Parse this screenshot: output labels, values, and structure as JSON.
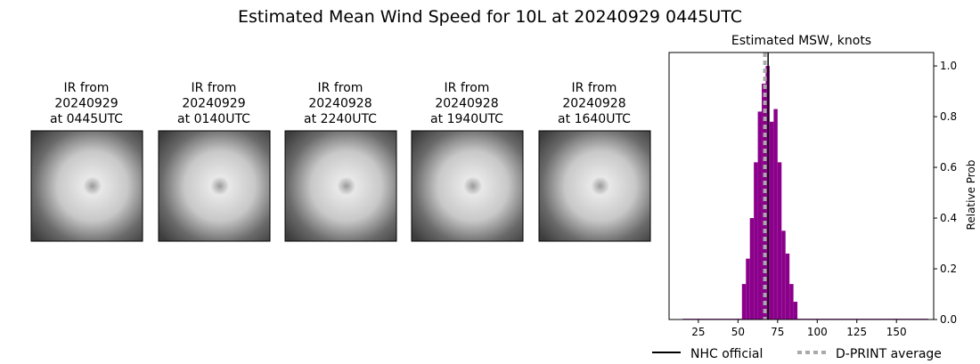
{
  "title": "Estimated Mean Wind Speed for 10L at 20240929 0445UTC",
  "panels": [
    {
      "lines": [
        "IR from",
        "20240929",
        "at 0445UTC"
      ]
    },
    {
      "lines": [
        "IR from",
        "20240929",
        "at 0140UTC"
      ]
    },
    {
      "lines": [
        "IR from",
        "20240928",
        "at 2240UTC"
      ]
    },
    {
      "lines": [
        "IR from",
        "20240928",
        "at 1940UTC"
      ]
    },
    {
      "lines": [
        "IR from",
        "20240928",
        "at 1640UTC"
      ]
    }
  ],
  "chart_data": {
    "type": "histogram",
    "title": "Estimated MSW, knots",
    "ylabel": "Relative Prob",
    "color": "#8b008b",
    "bins": [
      15,
      52.5,
      55,
      57.5,
      60,
      62.5,
      65,
      67.5,
      70,
      72.5,
      75,
      77.5,
      80,
      82.5,
      85,
      87.5,
      170
    ],
    "values": [
      0.003,
      0.14,
      0.24,
      0.4,
      0.62,
      0.82,
      0.93,
      1.0,
      0.78,
      0.83,
      0.62,
      0.35,
      0.26,
      0.14,
      0.07,
      0.003
    ],
    "xlim": [
      6.5,
      173.5
    ],
    "xticks": [
      25,
      50,
      75,
      100,
      125,
      150
    ],
    "ylim": [
      0,
      1.053
    ],
    "yticks": [
      {
        "value": 0,
        "label": "0.0"
      },
      {
        "value": 0.2,
        "label": "0.2"
      },
      {
        "value": 0.4,
        "label": "0.4"
      },
      {
        "value": 0.6,
        "label": "0.6"
      },
      {
        "value": 0.8,
        "label": "0.8"
      },
      {
        "value": 1.0,
        "label": "1.0"
      }
    ],
    "lines": [
      {
        "name": "NHC official",
        "value": 69,
        "color": "#000000",
        "dash": false
      },
      {
        "name": "D-PRINT average",
        "value": 67,
        "color": "#aaaaaa",
        "dash": true
      }
    ]
  }
}
